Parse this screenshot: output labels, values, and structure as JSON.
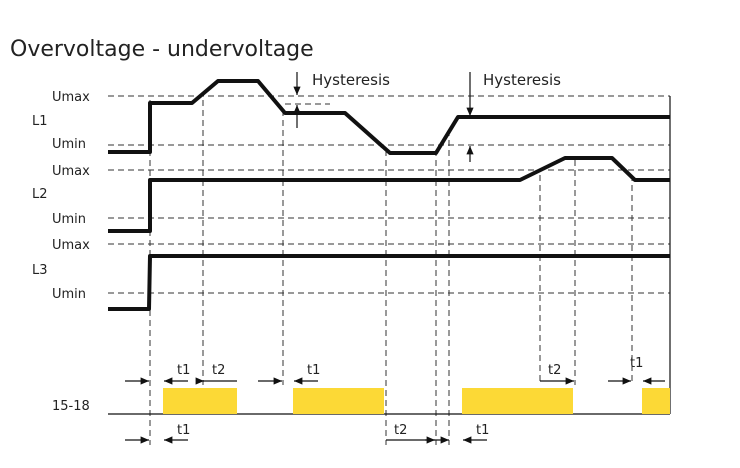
{
  "title": "Overvoltage - undervoltage",
  "annotations": [
    "Hysteresis",
    "Hysteresis"
  ],
  "channels": [
    {
      "label": "L1",
      "upper": "Umax",
      "lower": "Umin"
    },
    {
      "label": "L2",
      "upper": "Umax",
      "lower": "Umin"
    },
    {
      "label": "L3",
      "upper": "Umax",
      "lower": "Umin"
    }
  ],
  "output": {
    "label": "15-18"
  },
  "timing_labels": {
    "top": [
      "t1",
      "t2",
      "t1",
      "t2",
      "t1"
    ],
    "bottom": [
      "t1",
      "t2",
      "t1"
    ]
  }
}
